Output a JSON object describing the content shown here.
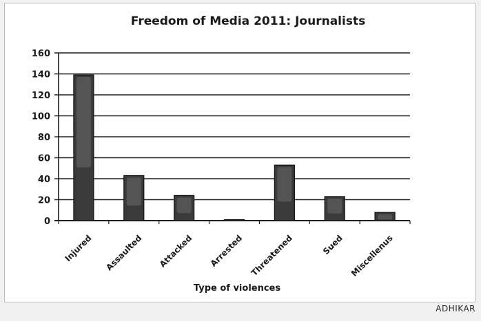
{
  "chart_data": {
    "type": "bar",
    "title": "Freedom of Media 2011: Journalists",
    "xlabel": "Type of violences",
    "ylabel": "",
    "categories": [
      "Injured",
      "Assaulted",
      "Attacked",
      "Arrested",
      "Threatened",
      "Sued",
      "Miscellenus"
    ],
    "values": [
      139,
      43,
      24,
      1,
      53,
      23,
      8
    ],
    "ylim": [
      0,
      160
    ],
    "yticks": [
      0,
      20,
      40,
      60,
      80,
      100,
      120,
      140,
      160
    ],
    "grid": true,
    "legend": "none",
    "colors": {
      "bar": "#3a3a3a",
      "bar_highlight": "#5e5e5e",
      "bar_edge": "#111111",
      "grid": "#1e1e1e"
    }
  },
  "credit": "ADHIKAR"
}
